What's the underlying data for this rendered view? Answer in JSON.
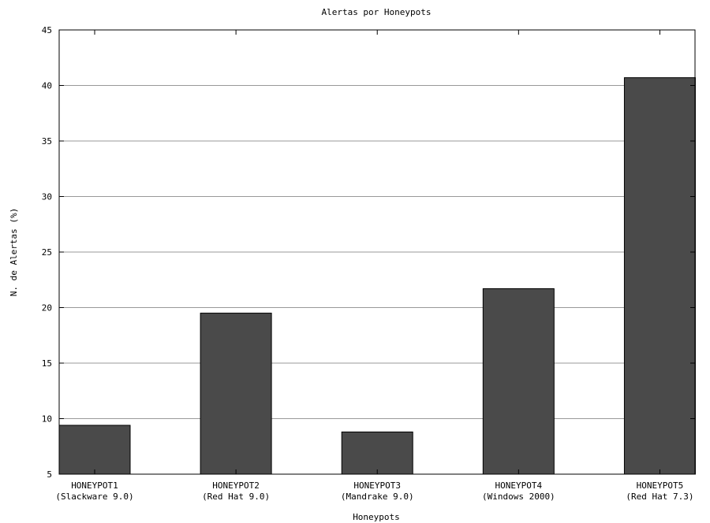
{
  "chart_data": {
    "type": "bar",
    "title": "Alertas por Honeypots",
    "xlabel": "Honeypots",
    "ylabel": "N. de Alertas (%)",
    "categories": [
      [
        "HONEYPOT1",
        "(Slackware 9.0)"
      ],
      [
        "HONEYPOT2",
        "(Red Hat 9.0)"
      ],
      [
        "HONEYPOT3",
        "(Mandrake 9.0)"
      ],
      [
        "HONEYPOT4",
        "(Windows 2000)"
      ],
      [
        "HONEYPOT5",
        "(Red Hat 7.3)"
      ]
    ],
    "values": [
      9.4,
      19.5,
      8.8,
      21.7,
      40.7
    ],
    "ylim": [
      5,
      45
    ],
    "yticks": [
      5,
      10,
      15,
      20,
      25,
      30,
      35,
      40,
      45
    ],
    "grid": true,
    "legend": "none",
    "colors": {
      "bar": "#4a4a4a",
      "grid": "#999999",
      "axis": "#000000"
    }
  }
}
